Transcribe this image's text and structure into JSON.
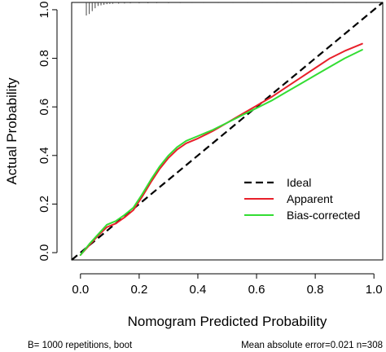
{
  "chart_data": {
    "type": "line",
    "xlabel": "Nomogram Predicted Probability",
    "ylabel": "Actual Probability",
    "xlim": [
      -0.03,
      1.03
    ],
    "ylim": [
      -0.03,
      1.03
    ],
    "x_ticks": [
      0.0,
      0.2,
      0.4,
      0.6,
      0.8,
      1.0
    ],
    "x_tick_labels": [
      "0.0",
      "0.2",
      "0.4",
      "0.6",
      "0.8",
      "1.0"
    ],
    "y_ticks": [
      0.0,
      0.2,
      0.4,
      0.6,
      0.8,
      1.0
    ],
    "y_tick_labels": [
      "0.0",
      "0.2",
      "0.4",
      "0.6",
      "0.8",
      "1.0"
    ],
    "grid": false,
    "legend_position": "bottom-right",
    "series": [
      {
        "name": "Ideal",
        "color": "#000000",
        "style": "dashed",
        "x": [
          -0.03,
          1.03
        ],
        "y": [
          -0.03,
          1.03
        ]
      },
      {
        "name": "Apparent",
        "color": "#e8202a",
        "style": "solid",
        "x": [
          0.0,
          0.03,
          0.06,
          0.09,
          0.12,
          0.15,
          0.18,
          0.21,
          0.24,
          0.27,
          0.3,
          0.33,
          0.36,
          0.4,
          0.45,
          0.5,
          0.55,
          0.6,
          0.65,
          0.7,
          0.75,
          0.8,
          0.85,
          0.9,
          0.96
        ],
        "y": [
          -0.01,
          0.03,
          0.07,
          0.105,
          0.12,
          0.145,
          0.175,
          0.23,
          0.29,
          0.345,
          0.39,
          0.425,
          0.45,
          0.47,
          0.5,
          0.535,
          0.57,
          0.605,
          0.64,
          0.68,
          0.72,
          0.76,
          0.8,
          0.83,
          0.86
        ]
      },
      {
        "name": "Bias-corrected",
        "color": "#33dd33",
        "style": "solid",
        "x": [
          0.0,
          0.03,
          0.06,
          0.09,
          0.12,
          0.15,
          0.18,
          0.21,
          0.24,
          0.27,
          0.3,
          0.33,
          0.36,
          0.4,
          0.45,
          0.5,
          0.55,
          0.6,
          0.65,
          0.7,
          0.75,
          0.8,
          0.85,
          0.9,
          0.96
        ],
        "y": [
          -0.01,
          0.035,
          0.075,
          0.115,
          0.13,
          0.155,
          0.185,
          0.24,
          0.3,
          0.355,
          0.4,
          0.435,
          0.46,
          0.48,
          0.505,
          0.535,
          0.565,
          0.595,
          0.625,
          0.66,
          0.695,
          0.73,
          0.765,
          0.8,
          0.835
        ]
      }
    ],
    "rug": {
      "color": "#444444",
      "marks": [
        {
          "x": 0.02,
          "len": 4.5
        },
        {
          "x": 0.03,
          "len": 4.0
        },
        {
          "x": 0.04,
          "len": 3.0
        },
        {
          "x": 0.05,
          "len": 2.0
        },
        {
          "x": 0.06,
          "len": 1.2
        },
        {
          "x": 0.07,
          "len": 1.0
        },
        {
          "x": 0.08,
          "len": 0.8
        },
        {
          "x": 0.09,
          "len": 0.6
        },
        {
          "x": 0.1,
          "len": 0.5
        },
        {
          "x": 0.11,
          "len": 0.45
        },
        {
          "x": 0.13,
          "len": 0.4
        },
        {
          "x": 0.15,
          "len": 0.35
        },
        {
          "x": 0.17,
          "len": 0.3
        },
        {
          "x": 0.2,
          "len": 0.3
        },
        {
          "x": 0.23,
          "len": 0.28
        },
        {
          "x": 0.26,
          "len": 0.25
        },
        {
          "x": 0.3,
          "len": 0.25
        },
        {
          "x": 0.34,
          "len": 0.22
        },
        {
          "x": 0.38,
          "len": 0.2
        },
        {
          "x": 0.42,
          "len": 0.2
        },
        {
          "x": 0.47,
          "len": 0.2
        },
        {
          "x": 0.52,
          "len": 0.2
        },
        {
          "x": 0.57,
          "len": 0.2
        },
        {
          "x": 0.62,
          "len": 0.2
        },
        {
          "x": 0.67,
          "len": 0.2
        },
        {
          "x": 0.72,
          "len": 0.2
        },
        {
          "x": 0.77,
          "len": 0.2
        },
        {
          "x": 0.82,
          "len": 0.2
        },
        {
          "x": 0.86,
          "len": 0.2
        },
        {
          "x": 0.9,
          "len": 0.2
        },
        {
          "x": 0.94,
          "len": 0.2
        }
      ]
    },
    "footer_left": "B= 1000 repetitions, boot",
    "footer_right": "Mean absolute error=0.021 n=308"
  }
}
